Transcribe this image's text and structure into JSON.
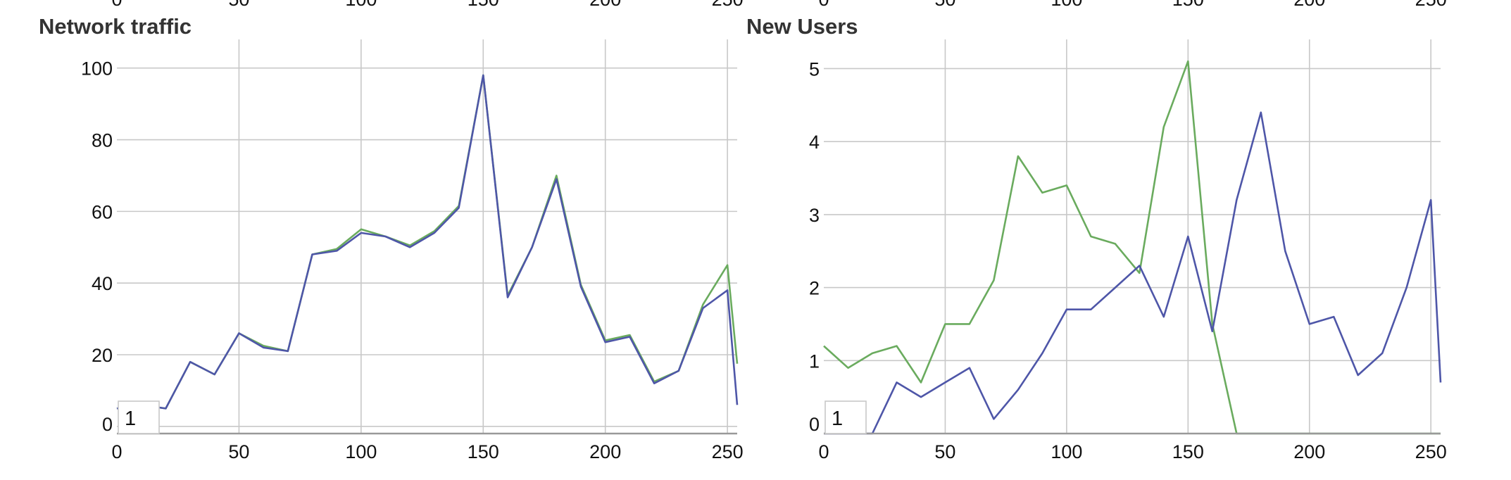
{
  "colors": {
    "series_green": "#6aab5e",
    "series_blue": "#4e56a8",
    "grid": "#c8c8c8",
    "axis": "#999999",
    "title": "#333333"
  },
  "chart_data": [
    {
      "type": "line",
      "title": "Network traffic",
      "xlabel": "",
      "ylabel": "",
      "xlim": [
        0,
        254
      ],
      "ylim": [
        -2,
        108
      ],
      "x_ticks": [
        "0",
        "50",
        "100",
        "150",
        "200",
        "250"
      ],
      "y_ticks": [
        "0",
        "20",
        "40",
        "60",
        "80",
        "100"
      ],
      "x_tick_values": [
        0,
        50,
        100,
        150,
        200,
        250
      ],
      "y_tick_values": [
        0,
        20,
        40,
        60,
        80,
        100
      ],
      "top_ticks": [
        "0",
        "50",
        "100",
        "150",
        "200",
        "250"
      ],
      "grid": true,
      "index_box": "1",
      "x": [
        0,
        10,
        20,
        30,
        40,
        50,
        60,
        70,
        80,
        90,
        100,
        110,
        120,
        130,
        140,
        150,
        160,
        170,
        180,
        190,
        200,
        210,
        220,
        230,
        240,
        250,
        254
      ],
      "series": [
        {
          "color": "#6aab5e",
          "values": [
            5,
            6,
            5,
            18,
            14.5,
            26,
            22.5,
            21,
            48,
            49.5,
            55,
            53,
            50.5,
            54.5,
            61.5,
            98,
            36.5,
            50,
            70,
            39.5,
            24,
            25.5,
            12.5,
            15.5,
            34,
            45,
            17.5
          ]
        },
        {
          "color": "#4e56a8",
          "values": [
            5,
            6,
            5,
            18,
            14.5,
            26,
            22,
            21,
            48,
            49,
            54,
            53,
            50,
            54,
            61,
            98,
            36,
            50,
            69,
            39,
            23.5,
            25,
            12,
            15.5,
            33,
            38,
            6
          ]
        }
      ]
    },
    {
      "type": "line",
      "title": "New Users",
      "xlabel": "",
      "ylabel": "",
      "xlim": [
        0,
        254
      ],
      "ylim": [
        0,
        5.4
      ],
      "x_ticks": [
        "0",
        "50",
        "100",
        "150",
        "200",
        "250"
      ],
      "y_ticks": [
        "0",
        "1",
        "2",
        "3",
        "4",
        "5"
      ],
      "x_tick_values": [
        0,
        50,
        100,
        150,
        200,
        250
      ],
      "y_tick_values": [
        0,
        1,
        2,
        3,
        4,
        5
      ],
      "top_ticks": [
        "0",
        "50",
        "100",
        "150",
        "200",
        "250"
      ],
      "grid": true,
      "index_box": "1",
      "x": [
        0,
        10,
        20,
        30,
        40,
        50,
        60,
        70,
        80,
        90,
        100,
        110,
        120,
        130,
        140,
        150,
        160,
        170,
        180,
        190,
        200,
        210,
        220,
        230,
        240,
        250,
        254
      ],
      "series": [
        {
          "color": "#6aab5e",
          "values": [
            1.2,
            0.9,
            1.1,
            1.2,
            0.7,
            1.5,
            1.5,
            2.1,
            3.8,
            3.3,
            3.4,
            2.7,
            2.6,
            2.2,
            4.2,
            5.1,
            1.5,
            0,
            0,
            0,
            0,
            0,
            0,
            0,
            0,
            0,
            0
          ]
        },
        {
          "color": "#4e56a8",
          "values": [
            0,
            0,
            0,
            0.7,
            0.5,
            0.7,
            0.9,
            0.2,
            0.6,
            1.1,
            1.7,
            1.7,
            2.0,
            2.3,
            1.6,
            2.7,
            1.4,
            3.2,
            4.4,
            2.5,
            1.5,
            1.6,
            0.8,
            1.1,
            2.0,
            3.2,
            0.7
          ]
        }
      ]
    }
  ]
}
